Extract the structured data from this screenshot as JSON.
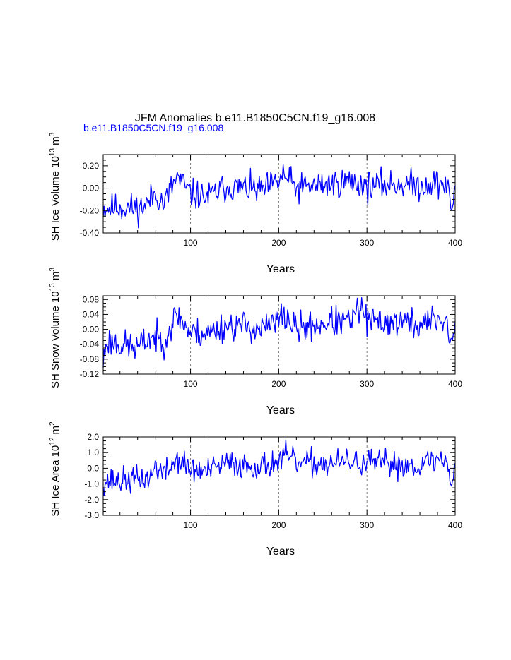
{
  "title": "JFM Anomalies b.e11.B1850C5CN.f19_g16.008",
  "subtitle": "b.e11.B1850C5CN.f19_g16.008",
  "colors": {
    "series": "#0000ff",
    "subtitle": "#0000ff",
    "axis": "#000000",
    "grid": "#808080"
  },
  "chart_data": [
    {
      "type": "line",
      "name": "ice-volume",
      "ylabel_main": "SH Ice Volume 10",
      "ylabel_exp": "13",
      "ylabel_unit": " m",
      "ylabel_unit_exp": "3",
      "xlabel": "Years",
      "xlim": [
        1,
        400
      ],
      "ylim": [
        -0.4,
        0.3
      ],
      "xticks": [
        100,
        200,
        300,
        400
      ],
      "xtick_labels": [
        "100",
        "200",
        "300",
        "400"
      ],
      "yticks": [
        0.2,
        0.0,
        -0.2,
        -0.4
      ],
      "ytick_labels": [
        "0.20",
        "0.00",
        "-0.20",
        "-0.40"
      ],
      "grid_x": [
        100,
        200,
        300
      ],
      "anchors": [
        [
          1,
          -0.18
        ],
        [
          20,
          -0.17
        ],
        [
          40,
          -0.18
        ],
        [
          50,
          -0.15
        ],
        [
          60,
          -0.04
        ],
        [
          70,
          -0.14
        ],
        [
          80,
          0.03
        ],
        [
          85,
          0.1
        ],
        [
          100,
          -0.05
        ],
        [
          120,
          -0.08
        ],
        [
          140,
          0.01
        ],
        [
          160,
          0.0
        ],
        [
          180,
          -0.02
        ],
        [
          199,
          0.05
        ],
        [
          205,
          0.12
        ],
        [
          220,
          0.0
        ],
        [
          240,
          0.02
        ],
        [
          260,
          0.04
        ],
        [
          280,
          0.06
        ],
        [
          300,
          0.02
        ],
        [
          320,
          0.03
        ],
        [
          340,
          0.04
        ],
        [
          360,
          0.02
        ],
        [
          380,
          0.05
        ],
        [
          390,
          0.02
        ],
        [
          396,
          -0.17
        ],
        [
          400,
          -0.02
        ]
      ],
      "amplitude": 0.065,
      "seed": 11
    },
    {
      "type": "line",
      "name": "snow-volume",
      "ylabel_main": "SH Snow Volume 10",
      "ylabel_exp": "13",
      "ylabel_unit": " m",
      "ylabel_unit_exp": "3",
      "xlabel": "Years",
      "xlim": [
        1,
        400
      ],
      "ylim": [
        -0.12,
        0.09
      ],
      "xticks": [
        100,
        200,
        300,
        400
      ],
      "xtick_labels": [
        "100",
        "200",
        "300",
        "400"
      ],
      "yticks": [
        0.08,
        0.04,
        0.0,
        -0.04,
        -0.08,
        -0.12
      ],
      "ytick_labels": [
        "0.08",
        "0.04",
        "0.00",
        "-0.04",
        "-0.08",
        "-0.12"
      ],
      "grid_x": [
        100,
        200,
        300
      ],
      "anchors": [
        [
          1,
          -0.09
        ],
        [
          5,
          -0.03
        ],
        [
          20,
          -0.04
        ],
        [
          40,
          -0.05
        ],
        [
          55,
          -0.02
        ],
        [
          70,
          -0.03
        ],
        [
          80,
          0.02
        ],
        [
          85,
          0.04
        ],
        [
          100,
          -0.01
        ],
        [
          120,
          -0.01
        ],
        [
          140,
          0.01
        ],
        [
          160,
          0.01
        ],
        [
          180,
          0.0
        ],
        [
          199,
          0.02
        ],
        [
          205,
          0.04
        ],
        [
          220,
          0.0
        ],
        [
          240,
          0.01
        ],
        [
          260,
          0.02
        ],
        [
          280,
          0.02
        ],
        [
          295,
          0.06
        ],
        [
          300,
          0.02
        ],
        [
          320,
          0.02
        ],
        [
          340,
          0.02
        ],
        [
          360,
          0.01
        ],
        [
          380,
          0.03
        ],
        [
          390,
          0.02
        ],
        [
          396,
          -0.04
        ],
        [
          400,
          0.0
        ]
      ],
      "amplitude": 0.02,
      "seed": 23
    },
    {
      "type": "line",
      "name": "ice-area",
      "ylabel_main": "SH Ice Area 10",
      "ylabel_exp": "12",
      "ylabel_unit": " m",
      "ylabel_unit_exp": "2",
      "xlabel": "Years",
      "xlim": [
        1,
        400
      ],
      "ylim": [
        -3.0,
        2.0
      ],
      "xticks": [
        100,
        200,
        300,
        400
      ],
      "xtick_labels": [
        "100",
        "200",
        "300",
        "400"
      ],
      "yticks": [
        2.0,
        1.0,
        0.0,
        -1.0,
        -2.0,
        -3.0
      ],
      "ytick_labels": [
        "2.0",
        "1.0",
        "0.0",
        "-1.0",
        "-2.0",
        "-3.0"
      ],
      "grid_x": [
        100,
        200,
        300
      ],
      "anchors": [
        [
          1,
          -0.8
        ],
        [
          20,
          -0.8
        ],
        [
          40,
          -0.7
        ],
        [
          55,
          -0.6
        ],
        [
          60,
          0.2
        ],
        [
          70,
          -0.4
        ],
        [
          85,
          0.6
        ],
        [
          100,
          -0.1
        ],
        [
          120,
          -0.2
        ],
        [
          140,
          0.3
        ],
        [
          160,
          0.2
        ],
        [
          180,
          0.1
        ],
        [
          199,
          0.4
        ],
        [
          210,
          0.8
        ],
        [
          220,
          0.3
        ],
        [
          240,
          0.3
        ],
        [
          260,
          0.3
        ],
        [
          280,
          0.4
        ],
        [
          300,
          0.3
        ],
        [
          320,
          0.3
        ],
        [
          340,
          0.2
        ],
        [
          360,
          0.2
        ],
        [
          380,
          0.6
        ],
        [
          390,
          0.4
        ],
        [
          396,
          -0.8
        ],
        [
          400,
          0.2
        ]
      ],
      "amplitude": 0.42,
      "seed": 37
    }
  ]
}
